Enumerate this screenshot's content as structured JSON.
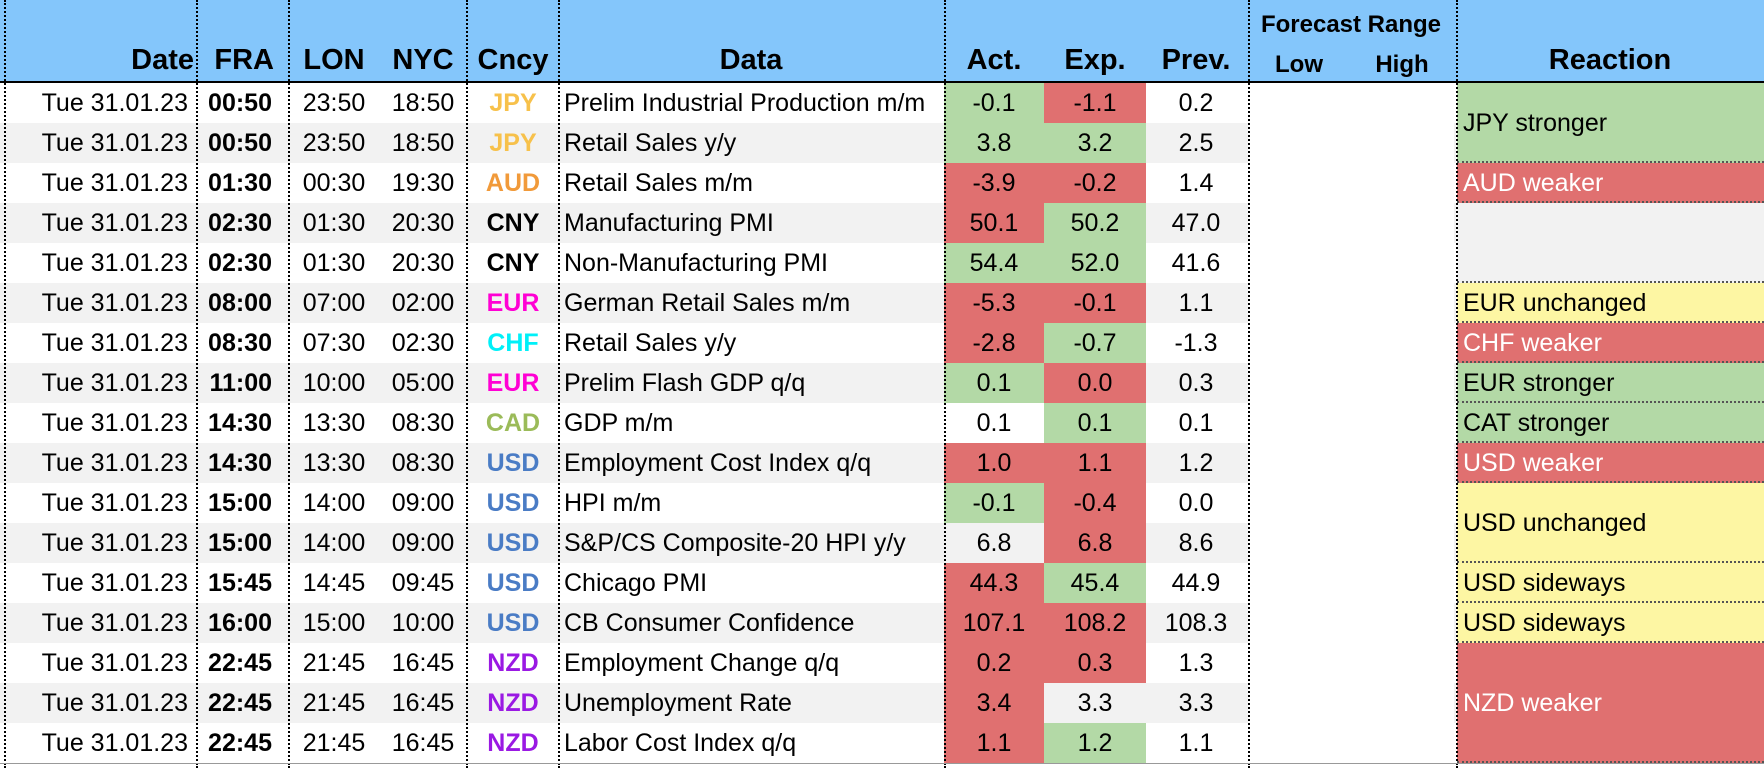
{
  "header": {
    "date": "Date",
    "fra": "FRA",
    "lon": "LON",
    "nyc": "NYC",
    "cncy": "Cncy",
    "data": "Data",
    "act": "Act.",
    "exp": "Exp.",
    "prev": "Prev.",
    "forecast_range": "Forecast Range",
    "low": "Low",
    "high": "High",
    "reaction": "Reaction"
  },
  "colors": {
    "header_bg": "#84c6fb",
    "red": "#e07070",
    "green": "#b3d9a6",
    "yellow": "#fdf6a3",
    "row_alt": "#f2f2f2",
    "JPY": "#f7c14b",
    "AUD": "#f19a3a",
    "CNY": "#000000",
    "EUR": "#ff00d4",
    "CHF": "#00f0f8",
    "CAD": "#9bbb59",
    "USD": "#4a7cc5",
    "NZD": "#9a19e3"
  },
  "rows": [
    {
      "date": "Tue 31.01.23",
      "fra": "00:50",
      "lon": "23:50",
      "nyc": "18:50",
      "cncy": "JPY",
      "data": "Prelim Industrial Production m/m",
      "act": "-0.1",
      "exp": "-1.1",
      "prev": "0.2",
      "act_color": "green",
      "exp_color": "red"
    },
    {
      "date": "Tue 31.01.23",
      "fra": "00:50",
      "lon": "23:50",
      "nyc": "18:50",
      "cncy": "JPY",
      "data": "Retail Sales y/y",
      "act": "3.8",
      "exp": "3.2",
      "prev": "2.5",
      "act_color": "green",
      "exp_color": "green"
    },
    {
      "date": "Tue 31.01.23",
      "fra": "01:30",
      "lon": "00:30",
      "nyc": "19:30",
      "cncy": "AUD",
      "data": "Retail Sales m/m",
      "act": "-3.9",
      "exp": "-0.2",
      "prev": "1.4",
      "act_color": "red",
      "exp_color": "red"
    },
    {
      "date": "Tue 31.01.23",
      "fra": "02:30",
      "lon": "01:30",
      "nyc": "20:30",
      "cncy": "CNY",
      "data": "Manufacturing PMI",
      "act": "50.1",
      "exp": "50.2",
      "prev": "47.0",
      "act_color": "red",
      "exp_color": "green"
    },
    {
      "date": "Tue 31.01.23",
      "fra": "02:30",
      "lon": "01:30",
      "nyc": "20:30",
      "cncy": "CNY",
      "data": "Non-Manufacturing PMI",
      "act": "54.4",
      "exp": "52.0",
      "prev": "41.6",
      "act_color": "green",
      "exp_color": "green"
    },
    {
      "date": "Tue 31.01.23",
      "fra": "08:00",
      "lon": "07:00",
      "nyc": "02:00",
      "cncy": "EUR",
      "data": "German Retail Sales m/m",
      "act": "-5.3",
      "exp": "-0.1",
      "prev": "1.1",
      "act_color": "red",
      "exp_color": "red"
    },
    {
      "date": "Tue 31.01.23",
      "fra": "08:30",
      "lon": "07:30",
      "nyc": "02:30",
      "cncy": "CHF",
      "data": "Retail Sales y/y",
      "act": "-2.8",
      "exp": "-0.7",
      "prev": "-1.3",
      "act_color": "red",
      "exp_color": "green"
    },
    {
      "date": "Tue 31.01.23",
      "fra": "11:00",
      "lon": "10:00",
      "nyc": "05:00",
      "cncy": "EUR",
      "data": "Prelim Flash GDP q/q",
      "act": "0.1",
      "exp": "0.0",
      "prev": "0.3",
      "act_color": "green",
      "exp_color": "red"
    },
    {
      "date": "Tue 31.01.23",
      "fra": "14:30",
      "lon": "13:30",
      "nyc": "08:30",
      "cncy": "CAD",
      "data": "GDP m/m",
      "act": "0.1",
      "exp": "0.1",
      "prev": "0.1",
      "act_color": "none",
      "exp_color": "green"
    },
    {
      "date": "Tue 31.01.23",
      "fra": "14:30",
      "lon": "13:30",
      "nyc": "08:30",
      "cncy": "USD",
      "data": "Employment Cost Index q/q",
      "act": "1.0",
      "exp": "1.1",
      "prev": "1.2",
      "act_color": "red",
      "exp_color": "red"
    },
    {
      "date": "Tue 31.01.23",
      "fra": "15:00",
      "lon": "14:00",
      "nyc": "09:00",
      "cncy": "USD",
      "data": "HPI m/m",
      "act": "-0.1",
      "exp": "-0.4",
      "prev": "0.0",
      "act_color": "green",
      "exp_color": "red"
    },
    {
      "date": "Tue 31.01.23",
      "fra": "15:00",
      "lon": "14:00",
      "nyc": "09:00",
      "cncy": "USD",
      "data": "S&P/CS Composite-20 HPI y/y",
      "act": "6.8",
      "exp": "6.8",
      "prev": "8.6",
      "act_color": "none",
      "exp_color": "red"
    },
    {
      "date": "Tue 31.01.23",
      "fra": "15:45",
      "lon": "14:45",
      "nyc": "09:45",
      "cncy": "USD",
      "data": "Chicago PMI",
      "act": "44.3",
      "exp": "45.4",
      "prev": "44.9",
      "act_color": "red",
      "exp_color": "green"
    },
    {
      "date": "Tue 31.01.23",
      "fra": "16:00",
      "lon": "15:00",
      "nyc": "10:00",
      "cncy": "USD",
      "data": "CB Consumer Confidence",
      "act": "107.1",
      "exp": "108.2",
      "prev": "108.3",
      "act_color": "red",
      "exp_color": "red"
    },
    {
      "date": "Tue 31.01.23",
      "fra": "22:45",
      "lon": "21:45",
      "nyc": "16:45",
      "cncy": "NZD",
      "data": "Employment Change q/q",
      "act": "0.2",
      "exp": "0.3",
      "prev": "1.3",
      "act_color": "red",
      "exp_color": "red"
    },
    {
      "date": "Tue 31.01.23",
      "fra": "22:45",
      "lon": "21:45",
      "nyc": "16:45",
      "cncy": "NZD",
      "data": "Unemployment Rate",
      "act": "3.4",
      "exp": "3.3",
      "prev": "3.3",
      "act_color": "red",
      "exp_color": "none"
    },
    {
      "date": "Tue 31.01.23",
      "fra": "22:45",
      "lon": "21:45",
      "nyc": "16:45",
      "cncy": "NZD",
      "data": "Labor Cost Index q/q",
      "act": "1.1",
      "exp": "1.2",
      "prev": "1.1",
      "act_color": "red",
      "exp_color": "green"
    }
  ],
  "reactions": [
    {
      "text": "JPY stronger",
      "start": 0,
      "span": 2,
      "color": "green"
    },
    {
      "text": "AUD weaker",
      "start": 2,
      "span": 1,
      "color": "red"
    },
    {
      "text": "",
      "start": 3,
      "span": 2,
      "color": "none"
    },
    {
      "text": "EUR unchanged",
      "start": 5,
      "span": 1,
      "color": "yellow"
    },
    {
      "text": "CHF weaker",
      "start": 6,
      "span": 1,
      "color": "red"
    },
    {
      "text": "EUR stronger",
      "start": 7,
      "span": 1,
      "color": "green"
    },
    {
      "text": "CAT stronger",
      "start": 8,
      "span": 1,
      "color": "green"
    },
    {
      "text": "USD weaker",
      "start": 9,
      "span": 1,
      "color": "red"
    },
    {
      "text": "USD unchanged",
      "start": 10,
      "span": 2,
      "color": "yellow"
    },
    {
      "text": "USD sideways",
      "start": 12,
      "span": 1,
      "color": "yellow"
    },
    {
      "text": "USD sideways",
      "start": 13,
      "span": 1,
      "color": "yellow"
    },
    {
      "text": "NZD weaker",
      "start": 14,
      "span": 3,
      "color": "red"
    }
  ]
}
